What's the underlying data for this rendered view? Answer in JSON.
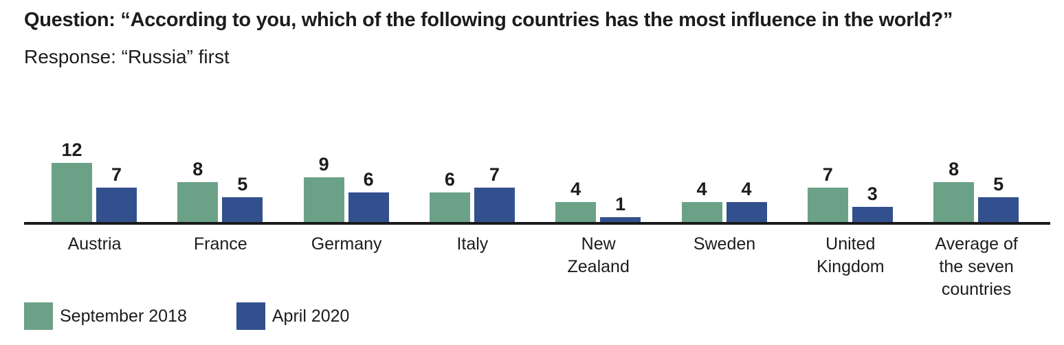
{
  "chart_data": {
    "type": "bar",
    "title": "Question: “According to you, which of the following countries has the most influence in the world?”",
    "subtitle": "Response: “Russia” first",
    "categories": [
      "Austria",
      "France",
      "Germany",
      "Italy",
      "New Zealand",
      "Sweden",
      "United Kingdom",
      "Average of the seven countries"
    ],
    "series": [
      {
        "name": "September 2018",
        "color": "#6BA287",
        "values": [
          12,
          8,
          9,
          6,
          4,
          4,
          7,
          8
        ]
      },
      {
        "name": "April 2020",
        "color": "#33508E",
        "values": [
          7,
          5,
          6,
          7,
          1,
          4,
          3,
          5
        ]
      }
    ],
    "ylim": [
      0,
      13
    ],
    "grid": false,
    "value_labels": true,
    "legend_position": "bottom-left",
    "axis_color": "#1a1a1a",
    "text_color": "#1c1c1c"
  }
}
